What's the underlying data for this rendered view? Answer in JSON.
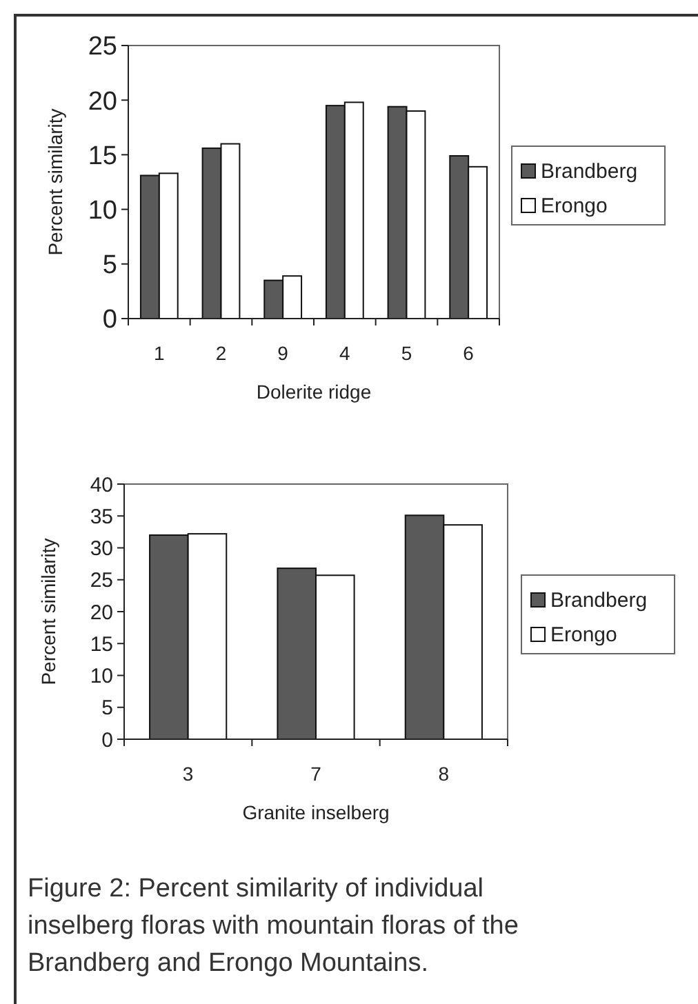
{
  "chart_data": [
    {
      "type": "bar",
      "categories": [
        "1",
        "2",
        "9",
        "4",
        "5",
        "6"
      ],
      "xlabel": "Dolerite ridge",
      "ylabel": "Percent similarity",
      "ylim": [
        0,
        25
      ],
      "yticks": [
        0,
        5,
        10,
        15,
        20,
        25
      ],
      "legend": "right",
      "grid": false,
      "series": [
        {
          "name": "Brandberg",
          "color": "#5a5a5a",
          "values": [
            13.1,
            15.6,
            3.5,
            19.5,
            19.4,
            14.9
          ]
        },
        {
          "name": "Erongo",
          "color": "#ffffff",
          "values": [
            13.3,
            16.0,
            3.9,
            19.8,
            19.0,
            13.9
          ]
        }
      ]
    },
    {
      "type": "bar",
      "categories": [
        "3",
        "7",
        "8"
      ],
      "xlabel": "Granite inselberg",
      "ylabel": "Percent similarity",
      "ylim": [
        0,
        40
      ],
      "yticks": [
        0,
        5,
        10,
        15,
        20,
        25,
        30,
        35,
        40
      ],
      "legend": "right",
      "grid": false,
      "series": [
        {
          "name": "Brandberg",
          "color": "#5a5a5a",
          "values": [
            32.0,
            26.8,
            35.1
          ]
        },
        {
          "name": "Erongo",
          "color": "#ffffff",
          "values": [
            32.2,
            25.7,
            33.6
          ]
        }
      ],
      "annotations": [
        "Figure 2: Percent similarity of individual inselberg floras with mountain floras of the Brandberg and Erongo Mountains."
      ]
    }
  ]
}
